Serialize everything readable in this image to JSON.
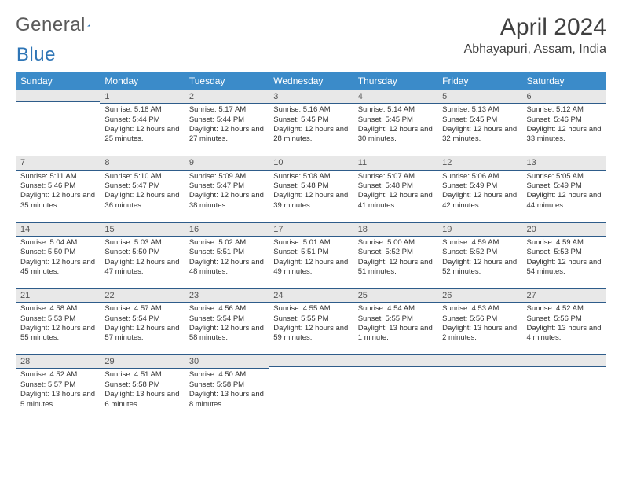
{
  "logo": {
    "text1": "General",
    "text2": "Blue"
  },
  "title": "April 2024",
  "location": "Abhayapuri, Assam, India",
  "colors": {
    "header_bg": "#3b8bc9",
    "header_text": "#ffffff",
    "daynum_bg": "#e8e8e8",
    "daynum_border": "#2e5c8a",
    "body_text": "#333333",
    "logo_gray": "#5a5a5a",
    "logo_blue": "#2e75b6"
  },
  "weekdays": [
    "Sunday",
    "Monday",
    "Tuesday",
    "Wednesday",
    "Thursday",
    "Friday",
    "Saturday"
  ],
  "weeks": [
    [
      null,
      {
        "n": "1",
        "sr": "5:18 AM",
        "ss": "5:44 PM",
        "dl": "12 hours and 25 minutes."
      },
      {
        "n": "2",
        "sr": "5:17 AM",
        "ss": "5:44 PM",
        "dl": "12 hours and 27 minutes."
      },
      {
        "n": "3",
        "sr": "5:16 AM",
        "ss": "5:45 PM",
        "dl": "12 hours and 28 minutes."
      },
      {
        "n": "4",
        "sr": "5:14 AM",
        "ss": "5:45 PM",
        "dl": "12 hours and 30 minutes."
      },
      {
        "n": "5",
        "sr": "5:13 AM",
        "ss": "5:45 PM",
        "dl": "12 hours and 32 minutes."
      },
      {
        "n": "6",
        "sr": "5:12 AM",
        "ss": "5:46 PM",
        "dl": "12 hours and 33 minutes."
      }
    ],
    [
      {
        "n": "7",
        "sr": "5:11 AM",
        "ss": "5:46 PM",
        "dl": "12 hours and 35 minutes."
      },
      {
        "n": "8",
        "sr": "5:10 AM",
        "ss": "5:47 PM",
        "dl": "12 hours and 36 minutes."
      },
      {
        "n": "9",
        "sr": "5:09 AM",
        "ss": "5:47 PM",
        "dl": "12 hours and 38 minutes."
      },
      {
        "n": "10",
        "sr": "5:08 AM",
        "ss": "5:48 PM",
        "dl": "12 hours and 39 minutes."
      },
      {
        "n": "11",
        "sr": "5:07 AM",
        "ss": "5:48 PM",
        "dl": "12 hours and 41 minutes."
      },
      {
        "n": "12",
        "sr": "5:06 AM",
        "ss": "5:49 PM",
        "dl": "12 hours and 42 minutes."
      },
      {
        "n": "13",
        "sr": "5:05 AM",
        "ss": "5:49 PM",
        "dl": "12 hours and 44 minutes."
      }
    ],
    [
      {
        "n": "14",
        "sr": "5:04 AM",
        "ss": "5:50 PM",
        "dl": "12 hours and 45 minutes."
      },
      {
        "n": "15",
        "sr": "5:03 AM",
        "ss": "5:50 PM",
        "dl": "12 hours and 47 minutes."
      },
      {
        "n": "16",
        "sr": "5:02 AM",
        "ss": "5:51 PM",
        "dl": "12 hours and 48 minutes."
      },
      {
        "n": "17",
        "sr": "5:01 AM",
        "ss": "5:51 PM",
        "dl": "12 hours and 49 minutes."
      },
      {
        "n": "18",
        "sr": "5:00 AM",
        "ss": "5:52 PM",
        "dl": "12 hours and 51 minutes."
      },
      {
        "n": "19",
        "sr": "4:59 AM",
        "ss": "5:52 PM",
        "dl": "12 hours and 52 minutes."
      },
      {
        "n": "20",
        "sr": "4:59 AM",
        "ss": "5:53 PM",
        "dl": "12 hours and 54 minutes."
      }
    ],
    [
      {
        "n": "21",
        "sr": "4:58 AM",
        "ss": "5:53 PM",
        "dl": "12 hours and 55 minutes."
      },
      {
        "n": "22",
        "sr": "4:57 AM",
        "ss": "5:54 PM",
        "dl": "12 hours and 57 minutes."
      },
      {
        "n": "23",
        "sr": "4:56 AM",
        "ss": "5:54 PM",
        "dl": "12 hours and 58 minutes."
      },
      {
        "n": "24",
        "sr": "4:55 AM",
        "ss": "5:55 PM",
        "dl": "12 hours and 59 minutes."
      },
      {
        "n": "25",
        "sr": "4:54 AM",
        "ss": "5:55 PM",
        "dl": "13 hours and 1 minute."
      },
      {
        "n": "26",
        "sr": "4:53 AM",
        "ss": "5:56 PM",
        "dl": "13 hours and 2 minutes."
      },
      {
        "n": "27",
        "sr": "4:52 AM",
        "ss": "5:56 PM",
        "dl": "13 hours and 4 minutes."
      }
    ],
    [
      {
        "n": "28",
        "sr": "4:52 AM",
        "ss": "5:57 PM",
        "dl": "13 hours and 5 minutes."
      },
      {
        "n": "29",
        "sr": "4:51 AM",
        "ss": "5:58 PM",
        "dl": "13 hours and 6 minutes."
      },
      {
        "n": "30",
        "sr": "4:50 AM",
        "ss": "5:58 PM",
        "dl": "13 hours and 8 minutes."
      },
      null,
      null,
      null,
      null
    ]
  ],
  "labels": {
    "sunrise": "Sunrise:",
    "sunset": "Sunset:",
    "daylight": "Daylight:"
  }
}
